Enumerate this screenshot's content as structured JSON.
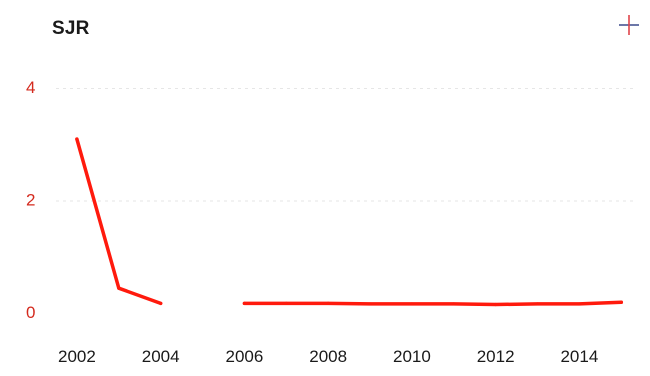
{
  "header": {
    "title": "SJR",
    "add_icon": "plus-icon"
  },
  "colors": {
    "line": "#ff1a0d",
    "ytick": "#d42a1e",
    "xtick": "#1a1a1a",
    "grid": "#e6e6e6",
    "plus_horizontal": "#3b4a8c",
    "plus_vertical": "#e0444a"
  },
  "chart_data": {
    "type": "line",
    "title": "SJR",
    "xlabel": "",
    "ylabel": "",
    "xlim": [
      2001.5,
      2015.4
    ],
    "ylim": [
      -0.4,
      4.4
    ],
    "yticks": [
      0,
      2,
      4
    ],
    "xticks": [
      2002,
      2004,
      2006,
      2008,
      2010,
      2012,
      2014
    ],
    "grid": true,
    "series": [
      {
        "segments": [
          {
            "x": [
              2002,
              2003,
              2004
            ],
            "y": [
              3.1,
              0.45,
              0.18
            ]
          },
          {
            "x": [
              2006,
              2007,
              2008,
              2009,
              2010,
              2011,
              2012,
              2013,
              2014,
              2015
            ],
            "y": [
              0.18,
              0.18,
              0.18,
              0.17,
              0.17,
              0.17,
              0.16,
              0.17,
              0.17,
              0.2
            ]
          }
        ]
      }
    ]
  }
}
